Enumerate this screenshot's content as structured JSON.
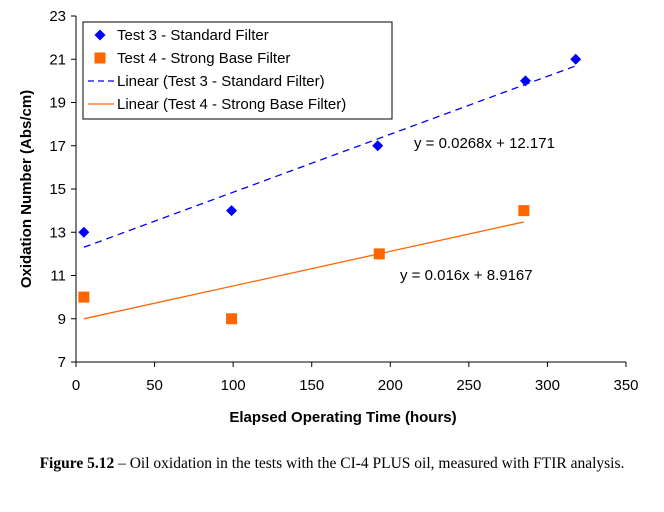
{
  "chart_data": {
    "type": "scatter",
    "xlabel": "Elapsed Operating Time (hours)",
    "ylabel": "Oxidation Number (Abs/cm)",
    "xlim": [
      0,
      350
    ],
    "ylim": [
      7,
      23
    ],
    "xticks": [
      0,
      50,
      100,
      150,
      200,
      250,
      300,
      350
    ],
    "yticks": [
      7,
      9,
      11,
      13,
      15,
      17,
      19,
      21,
      23
    ],
    "grid": false,
    "legend_position": "top-left",
    "series": [
      {
        "name": "Test 3 - Standard Filter",
        "marker": "diamond",
        "color": "#0000ff",
        "points": [
          [
            5,
            13
          ],
          [
            99,
            14
          ],
          [
            192,
            17
          ],
          [
            286,
            20
          ],
          [
            318,
            21
          ]
        ]
      },
      {
        "name": "Test 4 - Strong Base Filter",
        "marker": "square",
        "color": "#ff6600",
        "points": [
          [
            5,
            10
          ],
          [
            99,
            9
          ],
          [
            193,
            12
          ],
          [
            285,
            14
          ]
        ]
      }
    ],
    "trendlines": [
      {
        "name": "Linear (Test 3 - Standard Filter)",
        "style": "dashed",
        "color": "#0000ff",
        "slope": 0.0268,
        "intercept": 12.171,
        "x_range": [
          5,
          318
        ],
        "equation": "y = 0.0268x + 12.171"
      },
      {
        "name": "Linear (Test 4 - Strong Base Filter)",
        "style": "solid",
        "color": "#ff6600",
        "slope": 0.016,
        "intercept": 8.9167,
        "x_range": [
          5,
          285
        ],
        "equation": "y = 0.016x + 8.9167"
      }
    ]
  },
  "caption": {
    "label": "Figure 5.12",
    "dash": " – ",
    "text": "Oil oxidation in the tests with the CI-4 PLUS oil, measured with FTIR analysis."
  }
}
